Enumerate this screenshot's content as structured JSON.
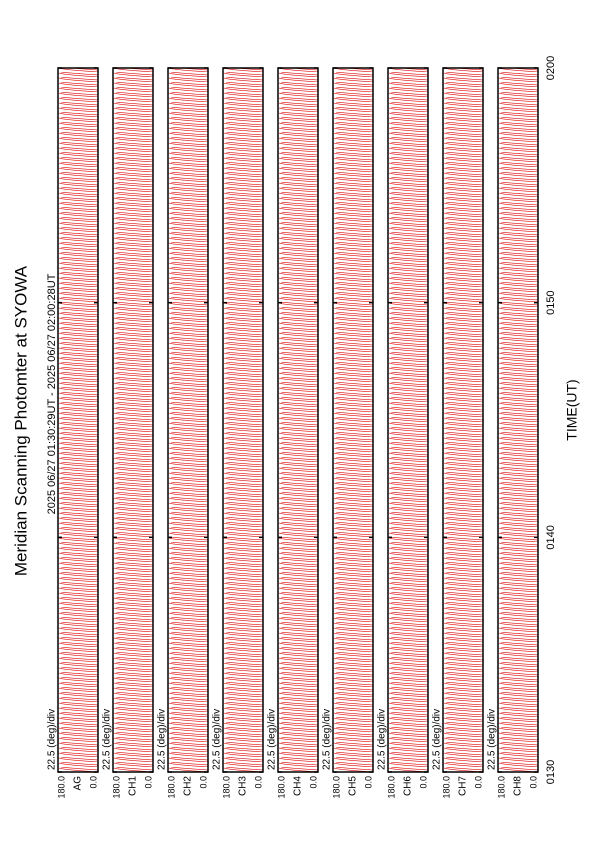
{
  "chart_data": {
    "type": "msp",
    "title": "Meridian Scanning Photomter at SYOWA",
    "subtitle": "2025 06/27 01:30:29UT - 2025 06/27 02:00:28UT",
    "xlabel": "TIME(UT)",
    "scale_label": "22.5 (deg)/div",
    "xlim": [
      0,
      30
    ],
    "xticks": [
      {
        "value": 0,
        "label": "0130"
      },
      {
        "value": 10,
        "label": "0140"
      },
      {
        "value": 20,
        "label": "0150"
      },
      {
        "value": 30,
        "label": "0200"
      }
    ],
    "ylim": [
      0,
      180
    ],
    "yticks": [
      {
        "value": 180,
        "label": "180.0"
      },
      {
        "value": 0,
        "label": "0.0"
      }
    ],
    "panels": [
      "AG",
      "CH1",
      "CH2",
      "CH3",
      "CH4",
      "CH5",
      "CH6",
      "CH7",
      "CH8"
    ],
    "color": "#dd0000"
  }
}
